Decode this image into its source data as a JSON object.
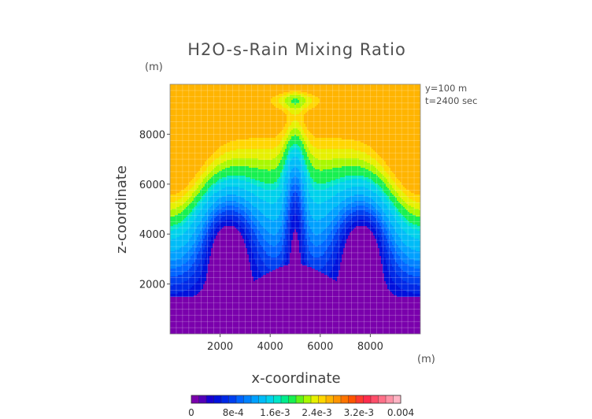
{
  "chart_data": {
    "type": "heatmap",
    "title": "H2O-s-Rain Mixing Ratio",
    "xlabel": "x-coordinate",
    "ylabel": "z-coordinate",
    "x_unit": "(m)",
    "y_unit": "(m)",
    "annotations": [
      "y=100 m",
      "t=2400 sec"
    ],
    "xlim": [
      0,
      10000
    ],
    "ylim": [
      0,
      10000
    ],
    "x_ticks": [
      {
        "value": 2000,
        "label": "2000"
      },
      {
        "value": 4000,
        "label": "4000"
      },
      {
        "value": 6000,
        "label": "6000"
      },
      {
        "value": 8000,
        "label": "8000"
      }
    ],
    "y_ticks": [
      {
        "value": 2000,
        "label": "2000"
      },
      {
        "value": 4000,
        "label": "4000"
      },
      {
        "value": 6000,
        "label": "6000"
      },
      {
        "value": 8000,
        "label": "8000"
      }
    ],
    "colorbar": {
      "min": 0,
      "max": 0.004,
      "tick_labels": [
        {
          "value": 0,
          "label": "0"
        },
        {
          "value": 0.0008,
          "label": "8e-4"
        },
        {
          "value": 0.0016,
          "label": "1.6e-3"
        },
        {
          "value": 0.0024,
          "label": "2.4e-3"
        },
        {
          "value": 0.0032,
          "label": "3.2e-3"
        },
        {
          "value": 0.004,
          "label": "0.004"
        }
      ],
      "colors": [
        "#7a00ac",
        "#5300b8",
        "#1800d0",
        "#0010dc",
        "#0028e6",
        "#0040f0",
        "#0064ff",
        "#0082ff",
        "#00a0ff",
        "#00bcf8",
        "#00d2ec",
        "#00e6c8",
        "#00ec8c",
        "#18f050",
        "#60f418",
        "#a8f800",
        "#e6f000",
        "#ffd600",
        "#ffb400",
        "#ff9400",
        "#ff7400",
        "#ff5400",
        "#ff3a2e",
        "#ff2c4c",
        "#ff4e6a",
        "#ff7088",
        "#ff92a6",
        "#ffb4c4"
      ]
    },
    "levels": [
      {
        "value": 0.0006,
        "color": "#0010dc"
      },
      {
        "value": 0.00075,
        "color": "#0028e6"
      },
      {
        "value": 0.0009,
        "color": "#0040f0"
      },
      {
        "value": 0.00105,
        "color": "#0064ff"
      },
      {
        "value": 0.0012,
        "color": "#0082ff"
      },
      {
        "value": 0.00135,
        "color": "#00a0ff"
      },
      {
        "value": 0.00155,
        "color": "#00bcf8"
      },
      {
        "value": 0.0018,
        "color": "#00d2ec"
      },
      {
        "value": 0.002,
        "color": "#00e6c8"
      },
      {
        "value": 0.0021,
        "color": "#18f050"
      },
      {
        "value": 0.0023,
        "color": "#a8f800"
      },
      {
        "value": 0.00245,
        "color": "#e6f000"
      },
      {
        "value": 0.0026,
        "color": "#ffd600"
      },
      {
        "value": 0.00275,
        "color": "#ffb400"
      }
    ],
    "background_color": "#7a00ac",
    "grid": true
  }
}
